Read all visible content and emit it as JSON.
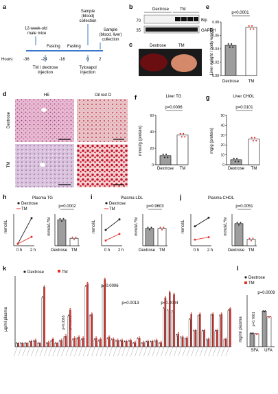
{
  "panels": {
    "a": {
      "label": "a",
      "top_labels": [
        "12-week-old",
        "male mice"
      ],
      "sample_labels": [
        "Sample",
        "(blood)",
        "collection"
      ],
      "sample2_labels": [
        "Sample",
        "(blood, liver)",
        "collection"
      ],
      "fasting": [
        "Fasting",
        "Fasting"
      ],
      "hours_label": "Hours:",
      "ticks": [
        "-36",
        "-24",
        "-16",
        "0",
        "2"
      ],
      "bottom_labels": [
        "TM / dextrose",
        "injection"
      ],
      "tylox_labels": [
        "Tyloxapol",
        "injection"
      ]
    },
    "b": {
      "label": "b",
      "groups": [
        "Dextrose",
        "TM"
      ],
      "markers": [
        "70",
        "35"
      ],
      "bands": [
        "Bip",
        "GAPDH"
      ]
    },
    "c": {
      "label": "c",
      "groups": [
        "Dextrose",
        "TM"
      ]
    },
    "d": {
      "label": "d",
      "cols": [
        "HE",
        "Oil red O"
      ],
      "rows": [
        "Dextrose",
        "TM"
      ]
    },
    "e": {
      "label": "e",
      "pval": "p<0.0001",
      "ylabel": "Liver weight / body weight",
      "yticks": [
        "0.00",
        "0.02",
        "0.04",
        "0.06",
        "0.08"
      ],
      "xcats": [
        "Dextrose",
        "TM"
      ]
    },
    "f": {
      "label": "f",
      "title": "Liver TG",
      "pval": "p=0.0006",
      "ylabel": "mmol/g (protein)",
      "yticks": [
        "0",
        "20",
        "40",
        "60"
      ],
      "xcats": [
        "Dextrose",
        "TM"
      ]
    },
    "g": {
      "label": "g",
      "title": "Liver CHOL",
      "pval": "p=0.0101",
      "ylabel": "mg/g (protein)",
      "yticks": [
        "0",
        "10",
        "20",
        "30",
        "40",
        "50"
      ],
      "xcats": [
        "Dextrose",
        "TM"
      ]
    },
    "h": {
      "label": "h",
      "title": "Plasma TG",
      "legend": [
        "Dextrose",
        "TM"
      ],
      "ylabel": "mmol/L",
      "xcats": [
        "0 h",
        "2 h"
      ],
      "pval": "p=0.0002",
      "ylabel2": "mmol/L*hr",
      "xcats2": [
        "Dextrose",
        "TM"
      ]
    },
    "i": {
      "label": "i",
      "title": "Plasma LDL",
      "legend": [
        "Dextrose",
        "TM"
      ],
      "ylabel": "mmol/L",
      "xcats": [
        "0 h",
        "2 h"
      ],
      "pval": "p=0.9603",
      "ylabel2": "mmol/L*hr",
      "xcats2": [
        "Dextrose",
        "TM"
      ]
    },
    "j": {
      "label": "j",
      "title": "Plasma CHOL",
      "ylabel": "mmol/L",
      "xcats": [
        "0 h",
        "2 h"
      ],
      "pval": "p=0.0051",
      "ylabel2": "mmol/L*hr",
      "xcats2": [
        "Dextrose",
        "TM"
      ]
    },
    "k": {
      "label": "k",
      "legend": [
        "Dextrose",
        "TM"
      ],
      "ylabel": "µg/ml plasma",
      "pvals": [
        "p=0.0365",
        "p=0.0005",
        "p=0.0006",
        "p=0.0013",
        "p=0.0004"
      ]
    },
    "l": {
      "label": "l",
      "legend": [
        "Dextrose",
        "TM"
      ],
      "ylabel": "mg/ml plasma",
      "pvals": [
        "p=0.7661",
        "p=0.0009"
      ],
      "xcats": [
        "SFA",
        "UFA"
      ]
    }
  },
  "colors": {
    "dextrose": "#222222",
    "tm": "#e8302a",
    "bar_grey": "#9e9e9e"
  },
  "chart_data": [
    {
      "panel": "e",
      "type": "bar",
      "categories": [
        "Dextrose",
        "TM"
      ],
      "values": [
        0.045,
        0.072
      ],
      "ylim": [
        0,
        0.08
      ]
    },
    {
      "panel": "f",
      "type": "bar",
      "categories": [
        "Dextrose",
        "TM"
      ],
      "values": [
        11,
        36
      ],
      "ylim": [
        0,
        60
      ]
    },
    {
      "panel": "g",
      "type": "bar",
      "categories": [
        "Dextrose",
        "TM"
      ],
      "values": [
        5,
        26
      ],
      "ylim": [
        0,
        50
      ]
    },
    {
      "panel": "h",
      "type": "line",
      "x": [
        "0 h",
        "2 h"
      ],
      "series": [
        {
          "name": "Dextrose",
          "values": [
            0.2,
            2.8
          ]
        },
        {
          "name": "TM",
          "values": [
            0.2,
            0.9
          ]
        }
      ]
    },
    {
      "panel": "h",
      "type": "bar",
      "categories": [
        "Dextrose",
        "TM"
      ],
      "values": [
        7.0,
        2.0
      ]
    },
    {
      "panel": "i",
      "type": "line",
      "x": [
        "0 h",
        "2 h"
      ],
      "series": [
        {
          "name": "Dextrose",
          "values": [
            0.6,
            1.0
          ]
        },
        {
          "name": "TM",
          "values": [
            0.2,
            0.45
          ]
        }
      ]
    },
    {
      "panel": "i",
      "type": "bar",
      "categories": [
        "Dextrose",
        "TM"
      ],
      "values": [
        0.22,
        0.22
      ]
    },
    {
      "panel": "j",
      "type": "line",
      "x": [
        "0 h",
        "2 h"
      ],
      "series": [
        {
          "name": "Dextrose",
          "values": [
            1.6,
            2.3
          ]
        },
        {
          "name": "TM",
          "values": [
            0.5,
            0.7
          ]
        }
      ]
    },
    {
      "panel": "j",
      "type": "bar",
      "categories": [
        "Dextrose",
        "TM"
      ],
      "values": [
        0.7,
        0.2
      ]
    },
    {
      "panel": "k",
      "type": "bar",
      "series": [
        {
          "name": "Dextrose",
          "values": [
            0.03,
            0.03,
            0.03,
            0.04,
            0.05,
            0.03,
            0.45,
            0.03,
            0.05,
            0.03,
            0.05,
            0.08,
            0.28,
            0.06,
            0.07,
            0.06,
            0.55,
            0.28,
            0.06,
            0.05,
            0.55,
            0.07,
            0.06,
            0.05,
            0.05,
            0.04,
            0.05,
            0.03,
            0.07,
            0.03,
            0.04,
            0.04,
            0.05,
            0.03,
            0.35,
            0.33,
            0.32,
            0.1,
            0.08,
            0.07,
            0.25,
            0.14,
            0.28,
            0.14,
            0.06,
            0.29,
            0.14,
            0.28,
            0.06,
            0.33
          ]
        },
        {
          "name": "TM",
          "values": [
            0.03,
            0.03,
            0.03,
            0.05,
            0.06,
            0.03,
            0.55,
            0.04,
            0.07,
            0.03,
            0.06,
            0.1,
            0.34,
            0.08,
            0.09,
            0.08,
            0.58,
            0.3,
            0.08,
            0.07,
            0.62,
            0.09,
            0.07,
            0.06,
            0.06,
            0.05,
            0.06,
            0.04,
            0.08,
            0.04,
            0.05,
            0.05,
            0.06,
            0.04,
            0.45,
            0.5,
            0.48,
            0.12,
            0.09,
            0.08,
            0.3,
            0.15,
            0.3,
            0.15,
            0.07,
            0.3,
            0.15,
            0.3,
            0.07,
            0.35
          ]
        }
      ]
    },
    {
      "panel": "l",
      "type": "bar",
      "categories": [
        "SFA",
        "UFA"
      ],
      "series": [
        {
          "name": "Dextrose",
          "values": [
            2.6,
            6.9
          ]
        },
        {
          "name": "TM",
          "values": [
            2.5,
            5.8
          ]
        }
      ]
    }
  ]
}
